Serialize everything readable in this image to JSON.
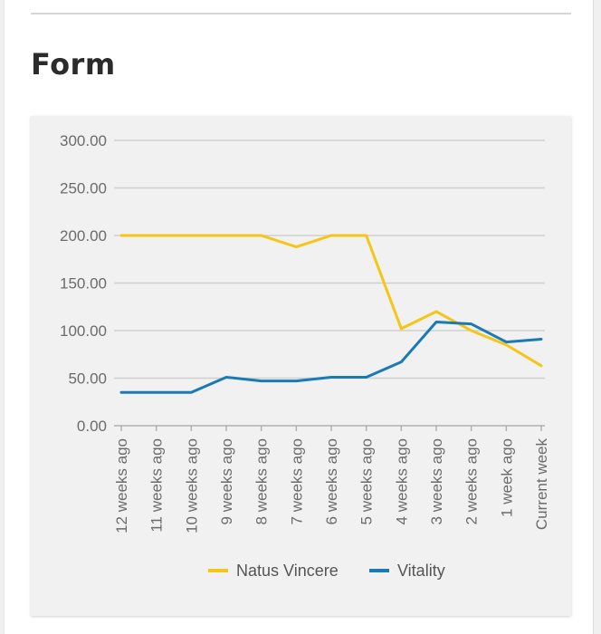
{
  "section": {
    "title": "Form"
  },
  "chart_data": {
    "type": "line",
    "categories": [
      "12 weeks ago",
      "11 weeks ago",
      "10 weeks ago",
      "9 weeks ago",
      "8 weeks ago",
      "7 weeks ago",
      "6 weeks ago",
      "5 weeks ago",
      "4 weeks ago",
      "3 weeks ago",
      "2 weeks ago",
      "1 week ago",
      "Current week"
    ],
    "series": [
      {
        "name": "Natus Vincere",
        "color": "#f5c518",
        "values": [
          200,
          200,
          200,
          200,
          200,
          188,
          200,
          200,
          102,
          120,
          100,
          85,
          63
        ]
      },
      {
        "name": "Vitality",
        "color": "#1a7ab5",
        "values": [
          35,
          35,
          35,
          51,
          47,
          47,
          51,
          51,
          67,
          109,
          107,
          88,
          91
        ]
      }
    ],
    "yticks": [
      "0.00",
      "50.00",
      "100.00",
      "150.00",
      "200.00",
      "250.00",
      "300.00"
    ],
    "ylim": [
      0,
      300
    ],
    "grid": true,
    "legend_position": "bottom"
  }
}
